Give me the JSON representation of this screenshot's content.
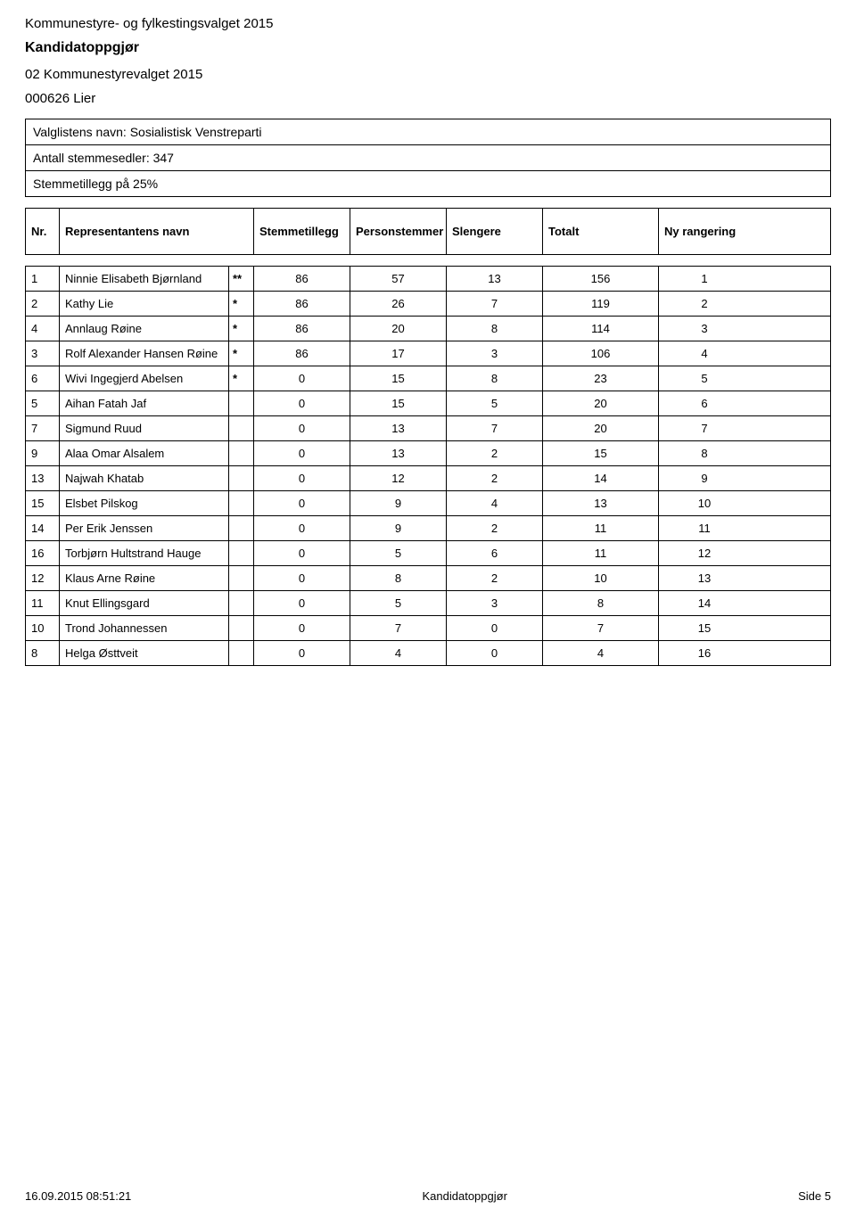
{
  "header": {
    "line1": "Kommunestyre- og fylkestingsvalget 2015",
    "line2": "Kandidatoppgjør",
    "line3": "02 Kommunestyrevalget 2015",
    "line4": "000626 Lier"
  },
  "infoBox": {
    "listName": "Valglistens navn: Sosialistisk Venstreparti",
    "ballots": "Antall stemmesedler: 347",
    "bonus": "Stemmetillegg på 25%"
  },
  "columns": {
    "nr": "Nr.",
    "name": "Representantens navn",
    "stemmetillegg": "Stemmetillegg",
    "personstemmer": "Personstemmer",
    "slengere": "Slengere",
    "totalt": "Totalt",
    "nyRangering": "Ny rangering"
  },
  "rows": [
    {
      "nr": "1",
      "name": "Ninnie Elisabeth Bjørnland",
      "star": "**",
      "stemmetillegg": "86",
      "personstemmer": "57",
      "slengere": "13",
      "totalt": "156",
      "ny": "1"
    },
    {
      "nr": "2",
      "name": "Kathy Lie",
      "star": "*",
      "stemmetillegg": "86",
      "personstemmer": "26",
      "slengere": "7",
      "totalt": "119",
      "ny": "2"
    },
    {
      "nr": "4",
      "name": "Annlaug Røine",
      "star": "*",
      "stemmetillegg": "86",
      "personstemmer": "20",
      "slengere": "8",
      "totalt": "114",
      "ny": "3"
    },
    {
      "nr": "3",
      "name": "Rolf Alexander Hansen Røine",
      "star": "*",
      "stemmetillegg": "86",
      "personstemmer": "17",
      "slengere": "3",
      "totalt": "106",
      "ny": "4"
    },
    {
      "nr": "6",
      "name": "Wivi Ingegjerd Abelsen",
      "star": "*",
      "stemmetillegg": "0",
      "personstemmer": "15",
      "slengere": "8",
      "totalt": "23",
      "ny": "5"
    },
    {
      "nr": "5",
      "name": "Aihan Fatah Jaf",
      "star": "",
      "stemmetillegg": "0",
      "personstemmer": "15",
      "slengere": "5",
      "totalt": "20",
      "ny": "6"
    },
    {
      "nr": "7",
      "name": "Sigmund Ruud",
      "star": "",
      "stemmetillegg": "0",
      "personstemmer": "13",
      "slengere": "7",
      "totalt": "20",
      "ny": "7"
    },
    {
      "nr": "9",
      "name": "Alaa Omar Alsalem",
      "star": "",
      "stemmetillegg": "0",
      "personstemmer": "13",
      "slengere": "2",
      "totalt": "15",
      "ny": "8"
    },
    {
      "nr": "13",
      "name": "Najwah Khatab",
      "star": "",
      "stemmetillegg": "0",
      "personstemmer": "12",
      "slengere": "2",
      "totalt": "14",
      "ny": "9"
    },
    {
      "nr": "15",
      "name": "Elsbet Pilskog",
      "star": "",
      "stemmetillegg": "0",
      "personstemmer": "9",
      "slengere": "4",
      "totalt": "13",
      "ny": "10"
    },
    {
      "nr": "14",
      "name": "Per Erik Jenssen",
      "star": "",
      "stemmetillegg": "0",
      "personstemmer": "9",
      "slengere": "2",
      "totalt": "11",
      "ny": "11"
    },
    {
      "nr": "16",
      "name": "Torbjørn Hultstrand Hauge",
      "star": "",
      "stemmetillegg": "0",
      "personstemmer": "5",
      "slengere": "6",
      "totalt": "11",
      "ny": "12"
    },
    {
      "nr": "12",
      "name": "Klaus Arne Røine",
      "star": "",
      "stemmetillegg": "0",
      "personstemmer": "8",
      "slengere": "2",
      "totalt": "10",
      "ny": "13"
    },
    {
      "nr": "11",
      "name": "Knut Ellingsgard",
      "star": "",
      "stemmetillegg": "0",
      "personstemmer": "5",
      "slengere": "3",
      "totalt": "8",
      "ny": "14"
    },
    {
      "nr": "10",
      "name": "Trond Johannessen",
      "star": "",
      "stemmetillegg": "0",
      "personstemmer": "7",
      "slengere": "0",
      "totalt": "7",
      "ny": "15"
    },
    {
      "nr": "8",
      "name": "Helga Østtveit",
      "star": "",
      "stemmetillegg": "0",
      "personstemmer": "4",
      "slengere": "0",
      "totalt": "4",
      "ny": "16"
    }
  ],
  "footer": {
    "timestamp": "16.09.2015 08:51:21",
    "center": "Kandidatoppgjør",
    "page": "Side 5"
  },
  "colors": {
    "border": "#000000",
    "text": "#000000",
    "background": "#ffffff"
  },
  "layout": {
    "pageWidth": 960,
    "pageHeight": 1365,
    "columnWidths": {
      "nr": 38,
      "name": 190,
      "star": 28,
      "value": 108,
      "totalt": 130,
      "last": 102
    }
  }
}
